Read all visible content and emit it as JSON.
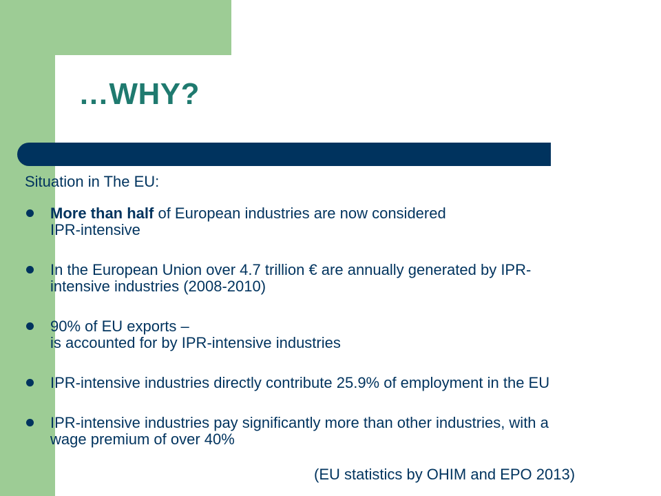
{
  "slide": {
    "title": "…WHY?",
    "intro": "Situation in The EU:",
    "bullets": [
      {
        "bold": "More than half",
        "line1": " of European industries are now considered",
        "line2": "IPR-intensive"
      },
      {
        "bold": "",
        "line1": "In the European Union over 4.7 trillion € are annually generated by IPR-",
        "line2": "intensive industries (2008-2010)"
      },
      {
        "bold": "",
        "line1": "90% of EU exports –",
        "line2": "is accounted for by IPR-intensive industries"
      },
      {
        "bold": "",
        "line1": "IPR-intensive industries directly contribute 25.9% of employment in the EU",
        "line2": ""
      },
      {
        "bold": "",
        "line1": "IPR-intensive industries pay significantly more than other industries, with a",
        "line2": "wage premium of over 40%"
      }
    ],
    "source": "(EU statistics by OHIM and EPO 2013)"
  },
  "colors": {
    "green": "#9dcc95",
    "title": "#1f7a6f",
    "navy": "#00335e"
  }
}
